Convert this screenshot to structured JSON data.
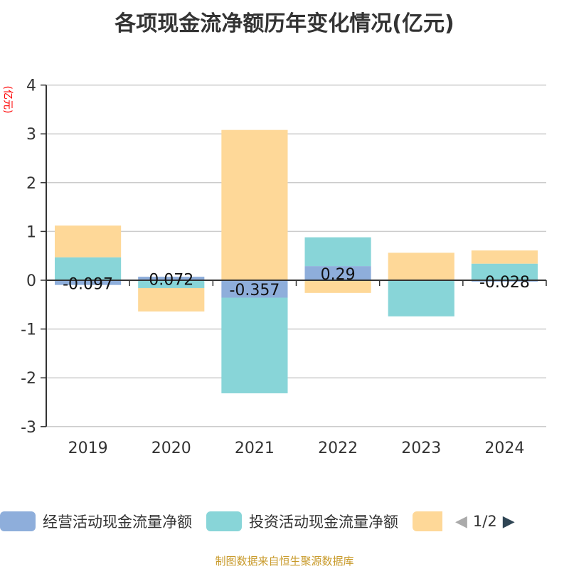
{
  "title": "各项现金流净额历年变化情况(亿元)",
  "unit": "(亿元)",
  "source": "制图数据来自恒生聚源数据库",
  "legend_page": "1/2",
  "chart_data": {
    "type": "bar",
    "stacked": true,
    "categories": [
      "2019",
      "2020",
      "2021",
      "2022",
      "2023",
      "2024"
    ],
    "ylim": [
      -3,
      4
    ],
    "yticks": [
      -3,
      -2,
      -1,
      0,
      1,
      2,
      3,
      4
    ],
    "series": [
      {
        "name": "经营活动现金流量净额",
        "color": "#8eaedb",
        "values": [
          -0.097,
          0.072,
          -0.357,
          0.29,
          0.003,
          -0.028
        ],
        "labels": [
          "-0.097",
          "0.072",
          "-0.357",
          "0.29",
          "",
          "-0.028"
        ]
      },
      {
        "name": "投资活动现金流量净额",
        "color": "#88d5d8",
        "values": [
          0.47,
          -0.16,
          -1.96,
          0.59,
          -0.74,
          0.34
        ]
      },
      {
        "name": "",
        "color": "#fed898",
        "values": [
          0.65,
          -0.48,
          3.08,
          -0.26,
          0.56,
          0.27
        ]
      }
    ],
    "legend": "bottom"
  }
}
